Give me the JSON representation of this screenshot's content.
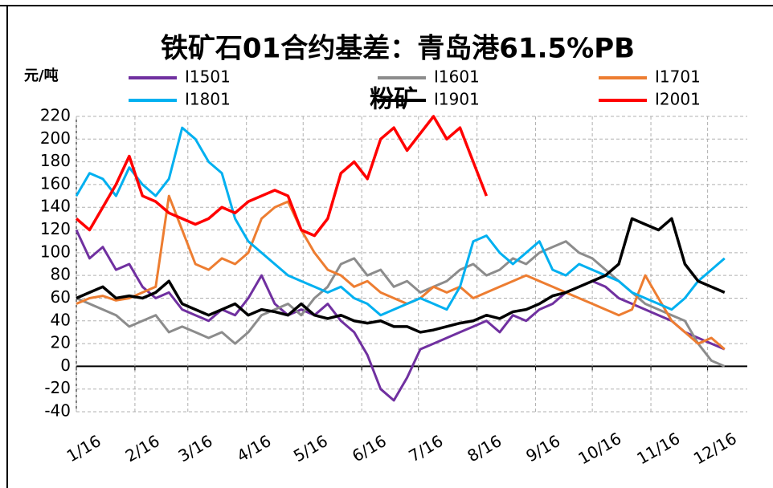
{
  "chart_data": {
    "type": "line",
    "title": [
      "铁矿石01合约基差：青岛港61.5%PB",
      "粉矿"
    ],
    "y_label": "元/吨",
    "x": [
      0,
      7,
      14,
      21,
      28,
      35,
      42,
      49,
      56,
      63,
      70,
      77,
      84,
      91,
      98,
      105,
      112,
      119,
      126,
      133,
      140,
      147,
      154,
      161,
      168,
      175,
      182,
      189,
      196,
      203,
      210,
      217,
      224,
      231,
      238,
      245,
      252,
      259,
      266,
      273,
      280,
      287,
      294,
      301,
      308,
      315,
      322,
      329,
      336,
      343
    ],
    "xlim": [
      0,
      355
    ],
    "xticks": [
      {
        "value": 0,
        "label": "1/16"
      },
      {
        "value": 31,
        "label": "2/16"
      },
      {
        "value": 59,
        "label": "3/16"
      },
      {
        "value": 90,
        "label": "4/16"
      },
      {
        "value": 120,
        "label": "5/16"
      },
      {
        "value": 151,
        "label": "6/16"
      },
      {
        "value": 181,
        "label": "7/16"
      },
      {
        "value": 212,
        "label": "8/16"
      },
      {
        "value": 243,
        "label": "9/16"
      },
      {
        "value": 273,
        "label": "10/16"
      },
      {
        "value": 304,
        "label": "11/16"
      },
      {
        "value": 334,
        "label": "12/16"
      }
    ],
    "ylim": [
      -40,
      220
    ],
    "yticks": [
      -40,
      -20,
      0,
      20,
      40,
      60,
      80,
      100,
      120,
      140,
      160,
      180,
      200,
      220
    ],
    "grid": true,
    "series": [
      {
        "name": "I1501",
        "color": "#7030a0",
        "values": [
          120,
          95,
          105,
          85,
          90,
          70,
          60,
          65,
          50,
          45,
          40,
          50,
          45,
          60,
          80,
          55,
          45,
          50,
          45,
          55,
          40,
          30,
          10,
          -20,
          -30,
          -10,
          15,
          20,
          25,
          30,
          35,
          40,
          30,
          45,
          40,
          50,
          55,
          65,
          70,
          75,
          70,
          60,
          55,
          50,
          45,
          40,
          30,
          25,
          20,
          15
        ]
      },
      {
        "name": "I1601",
        "color": "#8c8c8c",
        "values": [
          60,
          55,
          50,
          45,
          35,
          40,
          45,
          30,
          35,
          30,
          25,
          30,
          20,
          30,
          45,
          50,
          55,
          45,
          60,
          70,
          90,
          95,
          80,
          85,
          70,
          75,
          65,
          70,
          75,
          85,
          90,
          80,
          85,
          95,
          90,
          100,
          105,
          110,
          100,
          95,
          85,
          75,
          65,
          55,
          50,
          45,
          40,
          20,
          5,
          0
        ]
      },
      {
        "name": "I1701",
        "color": "#ed7d31",
        "values": [
          55,
          60,
          62,
          58,
          60,
          65,
          70,
          150,
          120,
          90,
          85,
          95,
          90,
          100,
          130,
          140,
          145,
          120,
          100,
          85,
          80,
          70,
          75,
          65,
          60,
          55,
          60,
          70,
          65,
          70,
          60,
          65,
          70,
          75,
          80,
          75,
          70,
          65,
          60,
          55,
          50,
          45,
          50,
          80,
          60,
          40,
          30,
          20,
          25,
          15
        ]
      },
      {
        "name": "I1801",
        "color": "#00b0f0",
        "values": [
          150,
          170,
          165,
          150,
          175,
          160,
          150,
          165,
          210,
          200,
          180,
          170,
          130,
          110,
          100,
          90,
          80,
          75,
          70,
          65,
          70,
          60,
          55,
          45,
          50,
          55,
          60,
          55,
          50,
          70,
          110,
          115,
          100,
          90,
          100,
          110,
          85,
          80,
          90,
          85,
          80,
          75,
          65,
          60,
          55,
          50,
          60,
          75,
          85,
          95
        ]
      },
      {
        "name": "I1901",
        "color": "#000000",
        "values": [
          60,
          65,
          70,
          60,
          62,
          60,
          65,
          75,
          55,
          50,
          45,
          50,
          55,
          45,
          50,
          48,
          45,
          55,
          45,
          42,
          45,
          40,
          38,
          40,
          35,
          35,
          30,
          32,
          35,
          38,
          40,
          45,
          42,
          48,
          50,
          55,
          62,
          65,
          70,
          75,
          80,
          90,
          130,
          125,
          120,
          130,
          90,
          75,
          70,
          65
        ]
      },
      {
        "name": "I2001",
        "color": "#ff0000",
        "values": [
          130,
          120,
          140,
          160,
          185,
          150,
          145,
          135,
          130,
          125,
          130,
          140,
          135,
          145,
          150,
          155,
          150,
          120,
          115,
          130,
          170,
          180,
          165,
          200,
          210,
          190,
          205,
          220,
          200,
          210,
          180,
          150,
          null,
          null,
          null,
          null,
          null,
          null,
          null,
          null,
          null,
          null,
          null,
          null,
          null,
          null,
          null,
          null,
          null,
          null
        ]
      }
    ]
  }
}
